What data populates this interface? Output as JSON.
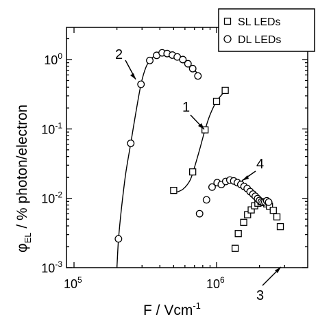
{
  "chart_data": {
    "type": "scatter",
    "x_scale": "log",
    "y_scale": "log",
    "xlim": [
      100000,
      3000000
    ],
    "ylim": [
      0.001,
      2
    ],
    "xlabel": "F / Vcm",
    "xlabel_sup": "-1",
    "ylabel_symbol": "φ",
    "ylabel_sub": "EL",
    "ylabel_rest": " / % photon/electron",
    "x_ticks": [
      {
        "value": 100000,
        "base": "10",
        "exp": "5"
      },
      {
        "value": 1000000,
        "base": "10",
        "exp": "6"
      }
    ],
    "y_ticks": [
      {
        "value": 0.001,
        "label": "10",
        "exp": "-3"
      },
      {
        "value": 0.01,
        "label": "10",
        "exp": "-2"
      },
      {
        "value": 0.1,
        "label": "10",
        "exp": "-1"
      },
      {
        "value": 1,
        "label": "10",
        "exp": "0"
      }
    ],
    "legend": {
      "placement": "top-right",
      "entries": [
        {
          "label": "SL LEDs",
          "marker": "square"
        },
        {
          "label": "DL LEDs",
          "marker": "circle"
        }
      ]
    },
    "series": [
      {
        "name": "SL LEDs",
        "marker": "square",
        "curve_label": "1",
        "points": [
          [
            500000,
            0.013
          ],
          [
            680000,
            0.024
          ],
          [
            830000,
            0.097
          ],
          [
            1000000,
            0.25
          ],
          [
            1150000,
            0.36
          ]
        ],
        "fit": [
          [
            510000,
            0.012
          ],
          [
            580000,
            0.0135
          ],
          [
            650000,
            0.018
          ],
          [
            700000,
            0.028
          ],
          [
            760000,
            0.05
          ],
          [
            830000,
            0.097
          ],
          [
            900000,
            0.16
          ],
          [
            1000000,
            0.25
          ],
          [
            1130000,
            0.34
          ]
        ]
      },
      {
        "name": "DL LEDs",
        "marker": "circle",
        "curve_label": "2",
        "points": [
          [
            205000,
            0.0026
          ],
          [
            250000,
            0.062
          ],
          [
            295000,
            0.44
          ],
          [
            340000,
            0.97
          ],
          [
            380000,
            1.15
          ],
          [
            415000,
            1.25
          ],
          [
            450000,
            1.22
          ],
          [
            490000,
            1.16
          ],
          [
            530000,
            1.09
          ],
          [
            580000,
            1.0
          ],
          [
            630000,
            0.87
          ],
          [
            680000,
            0.74
          ],
          [
            740000,
            0.58
          ]
        ],
        "fit": [
          [
            200000,
            0.001
          ],
          [
            205000,
            0.0025
          ],
          [
            215000,
            0.007
          ],
          [
            230000,
            0.022
          ],
          [
            250000,
            0.062
          ],
          [
            270000,
            0.16
          ],
          [
            295000,
            0.44
          ],
          [
            320000,
            0.78
          ],
          [
            350000,
            1.04
          ],
          [
            390000,
            1.2
          ],
          [
            430000,
            1.25
          ],
          [
            500000,
            1.16
          ],
          [
            580000,
            1.0
          ],
          [
            680000,
            0.76
          ],
          [
            760000,
            0.57
          ]
        ]
      },
      {
        "name": "SL LEDs",
        "marker": "square",
        "curve_label": "3",
        "points": [
          [
            1350000,
            0.0019
          ],
          [
            1420000,
            0.0031
          ],
          [
            1550000,
            0.0045
          ],
          [
            1650000,
            0.0058
          ],
          [
            1750000,
            0.0068
          ],
          [
            1850000,
            0.0078
          ],
          [
            1950000,
            0.0085
          ],
          [
            2050000,
            0.0089
          ],
          [
            2150000,
            0.0087
          ],
          [
            2250000,
            0.0083
          ],
          [
            2350000,
            0.0077
          ],
          [
            2500000,
            0.0067
          ],
          [
            2650000,
            0.0054
          ],
          [
            2800000,
            0.0039
          ]
        ]
      },
      {
        "name": "DL LEDs",
        "marker": "circle",
        "curve_label": "4",
        "points": [
          [
            760000,
            0.006
          ],
          [
            850000,
            0.0095
          ],
          [
            930000,
            0.0145
          ],
          [
            1010000,
            0.0168
          ],
          [
            1080000,
            0.0158
          ],
          [
            1160000,
            0.0175
          ],
          [
            1240000,
            0.0183
          ],
          [
            1320000,
            0.0178
          ],
          [
            1400000,
            0.0168
          ],
          [
            1480000,
            0.0158
          ],
          [
            1560000,
            0.0148
          ],
          [
            1640000,
            0.0138
          ],
          [
            1720000,
            0.0125
          ],
          [
            1800000,
            0.0115
          ],
          [
            1870000,
            0.0107
          ],
          [
            1940000,
            0.0099
          ],
          [
            2000000,
            0.0093
          ],
          [
            2060000,
            0.0089
          ],
          [
            2120000,
            0.0088
          ],
          [
            2180000,
            0.0089
          ],
          [
            2250000,
            0.0092
          ],
          [
            2320000,
            0.0088
          ]
        ]
      }
    ]
  }
}
